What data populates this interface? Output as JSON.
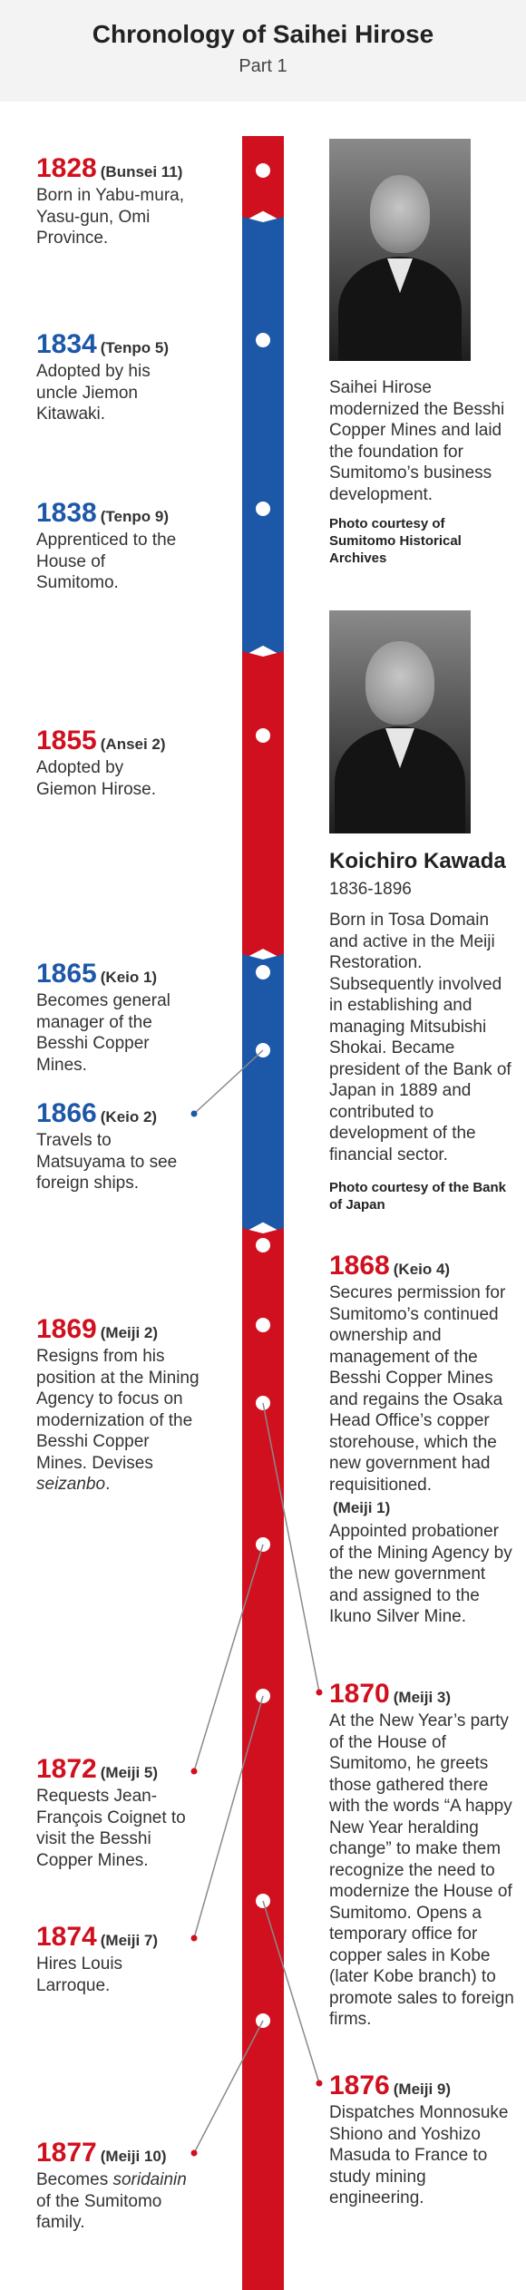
{
  "header": {
    "title": "Chronology of Saihei Hirose",
    "subtitle": "Part 1"
  },
  "colors": {
    "red": "#d0101e",
    "blue": "#1d57a8"
  },
  "events": {
    "e1828": {
      "year": "1828",
      "era": "(Bunsei 11)",
      "text": "Born in Yabu-mura, Yasu-gun, Omi Province."
    },
    "e1834": {
      "year": "1834",
      "era": "(Tenpo 5)",
      "text": "Adopted by his uncle Jiemon Kitawaki."
    },
    "e1838": {
      "year": "1838",
      "era": "(Tenpo 9)",
      "text": "Apprenticed to the House of Sumitomo."
    },
    "e1855": {
      "year": "1855",
      "era": "(Ansei 2)",
      "text": "Adopted by Giemon Hirose."
    },
    "e1865": {
      "year": "1865",
      "era": "(Keio 1)",
      "text": "Becomes general manager of the Besshi Copper Mines."
    },
    "e1866": {
      "year": "1866",
      "era": "(Keio 2)",
      "text": "Travels to Matsuyama to see foreign ships."
    },
    "e1868": {
      "year": "1868",
      "era": "(Keio 4)",
      "text": "Secures permission for Sumitomo’s continued ownership and management of the Besshi Copper Mines and regains the Osaka Head Office’s copper storehouse, which the new government had requisitioned.",
      "era2": "(Meiji 1)",
      "text2": "Appointed probationer of the Mining Agency by the new government and assigned to the Ikuno Silver Mine."
    },
    "e1869": {
      "year": "1869",
      "era": "(Meiji 2)",
      "text": "Resigns from his position at the Mining Agency to focus on modernization of the Besshi Copper Mines. Devises",
      "text_italic": "seizanbo",
      "text_end": "."
    },
    "e1870": {
      "year": "1870",
      "era": "(Meiji 3)",
      "text": "At the New Year’s party of the House of Sumitomo, he greets those gathered there with the words “A happy New Year heralding change” to make them recognize the need to modernize the House of Sumitomo. Opens a temporary office for copper sales in Kobe (later Kobe branch) to promote sales to foreign firms."
    },
    "e1872": {
      "year": "1872",
      "era": "(Meiji 5)",
      "text": "Requests Jean-François Coignet to visit the Besshi Copper Mines."
    },
    "e1874": {
      "year": "1874",
      "era": "(Meiji 7)",
      "text": "Hires Louis Larroque."
    },
    "e1876": {
      "year": "1876",
      "era": "(Meiji 9)",
      "text": "Dispatches Monnosuke Shiono and Yoshizo Masuda to France to study mining engineering."
    },
    "e1877": {
      "year": "1877",
      "era": "(Meiji 10)",
      "text": "Becomes",
      "text_italic": "soridainin",
      "text_end": " of the Sumitomo family."
    }
  },
  "profile1": {
    "caption": "Saihei Hirose modernized the Besshi Copper Mines and laid the foundation for Sumitomo’s business development.",
    "credit": "Photo courtesy of Sumitomo Historical Archives"
  },
  "profile2": {
    "name": "Koichiro Kawada",
    "years": "1836-1896",
    "caption": "Born in Tosa Domain and active in the Meiji Restoration. Subsequently involved in establishing and managing Mitsubishi Shokai. Became president of the Bank of Japan in 1889 and contributed to development of the financial sector.",
    "credit": "Photo courtesy of the Bank of Japan"
  }
}
